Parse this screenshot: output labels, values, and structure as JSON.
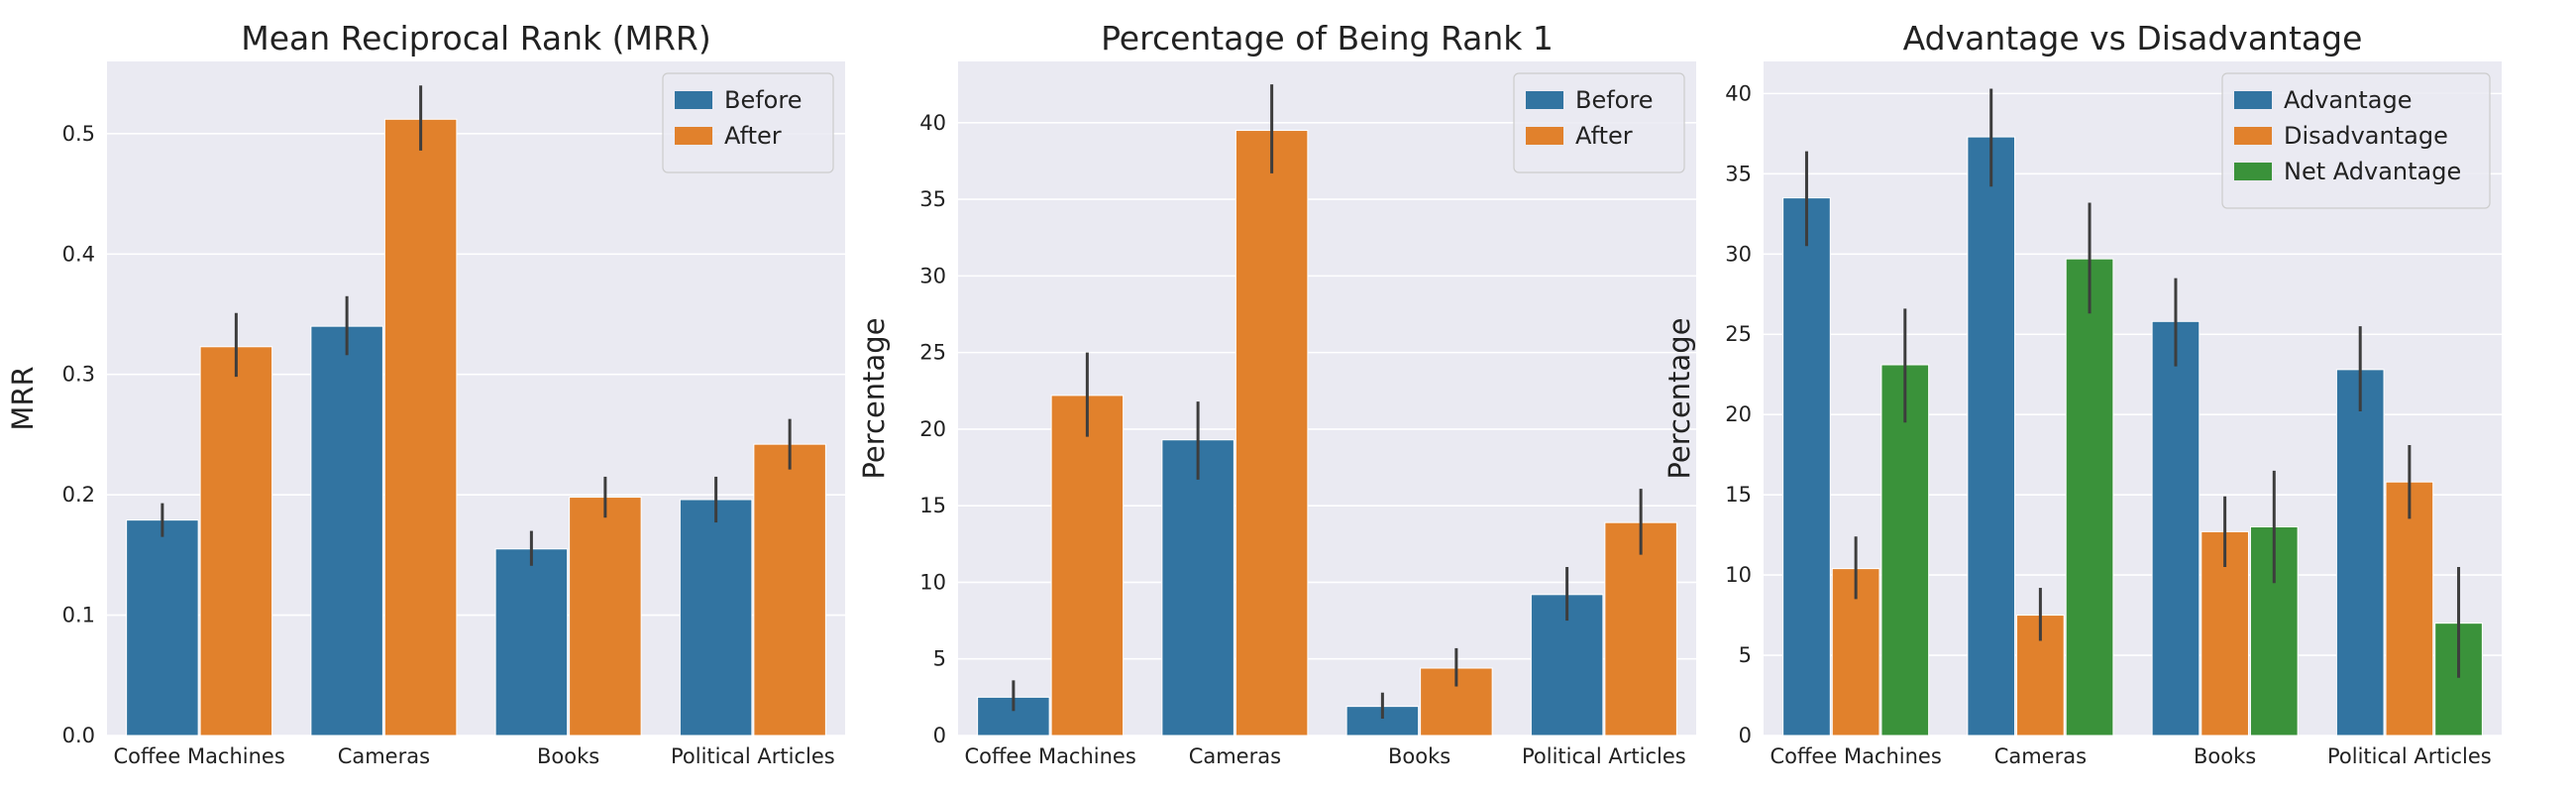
{
  "chart_data": [
    {
      "type": "bar",
      "title": "Mean Reciprocal Rank (MRR)",
      "xlabel": "",
      "ylabel": "MRR",
      "categories": [
        "Coffee Machines",
        "Cameras",
        "Books",
        "Political Articles"
      ],
      "ylim": [
        0,
        0.56
      ],
      "yticks": [
        0.0,
        0.1,
        0.2,
        0.3,
        0.4,
        0.5
      ],
      "ytick_labels": [
        "0.0",
        "0.1",
        "0.2",
        "0.3",
        "0.4",
        "0.5"
      ],
      "series": [
        {
          "name": "Before",
          "color": "#3274a1",
          "values": [
            0.179,
            0.34,
            0.155,
            0.196
          ],
          "err_low": [
            0.165,
            0.316,
            0.141,
            0.177
          ],
          "err_high": [
            0.193,
            0.365,
            0.17,
            0.215
          ]
        },
        {
          "name": "After",
          "color": "#e1812c",
          "values": [
            0.323,
            0.512,
            0.198,
            0.242
          ],
          "err_low": [
            0.298,
            0.486,
            0.181,
            0.221
          ],
          "err_high": [
            0.351,
            0.54,
            0.215,
            0.263
          ]
        }
      ],
      "legend": "top-right",
      "grid": true
    },
    {
      "type": "bar",
      "title": "Percentage of Being Rank 1",
      "xlabel": "",
      "ylabel": "Percentage",
      "categories": [
        "Coffee Machines",
        "Cameras",
        "Books",
        "Political Articles"
      ],
      "ylim": [
        0,
        44
      ],
      "yticks": [
        0,
        5,
        10,
        15,
        20,
        25,
        30,
        35,
        40
      ],
      "ytick_labels": [
        "0",
        "5",
        "10",
        "15",
        "20",
        "25",
        "30",
        "35",
        "40"
      ],
      "series": [
        {
          "name": "Before",
          "color": "#3274a1",
          "values": [
            2.5,
            19.3,
            1.9,
            9.2
          ],
          "err_low": [
            1.6,
            16.7,
            1.1,
            7.5
          ],
          "err_high": [
            3.6,
            21.8,
            2.8,
            11.0
          ]
        },
        {
          "name": "After",
          "color": "#e1812c",
          "values": [
            22.2,
            39.5,
            4.4,
            13.9
          ],
          "err_low": [
            19.5,
            36.7,
            3.2,
            11.8
          ],
          "err_high": [
            25.0,
            42.5,
            5.7,
            16.1
          ]
        }
      ],
      "legend": "top-right",
      "grid": true
    },
    {
      "type": "bar",
      "title": "Advantage vs Disadvantage",
      "xlabel": "",
      "ylabel": "Percentage",
      "categories": [
        "Coffee Machines",
        "Cameras",
        "Books",
        "Political Articles"
      ],
      "ylim": [
        0,
        42
      ],
      "yticks": [
        0,
        5,
        10,
        15,
        20,
        25,
        30,
        35,
        40
      ],
      "ytick_labels": [
        "0",
        "5",
        "10",
        "15",
        "20",
        "25",
        "30",
        "35",
        "40"
      ],
      "series": [
        {
          "name": "Advantage",
          "color": "#3274a1",
          "values": [
            33.5,
            37.3,
            25.8,
            22.8
          ],
          "err_low": [
            30.5,
            34.2,
            23.0,
            20.2
          ],
          "err_high": [
            36.4,
            40.3,
            28.5,
            25.5
          ]
        },
        {
          "name": "Disadvantage",
          "color": "#e1812c",
          "values": [
            10.4,
            7.5,
            12.7,
            15.8
          ],
          "err_low": [
            8.5,
            5.9,
            10.5,
            13.5
          ],
          "err_high": [
            12.4,
            9.2,
            14.9,
            18.1
          ]
        },
        {
          "name": "Net Advantage",
          "color": "#3a923a",
          "values": [
            23.1,
            29.7,
            13.0,
            7.0
          ],
          "err_low": [
            19.5,
            26.3,
            9.5,
            3.6
          ],
          "err_high": [
            26.6,
            33.2,
            16.5,
            10.5
          ]
        }
      ],
      "legend": "top-right",
      "grid": true
    }
  ]
}
